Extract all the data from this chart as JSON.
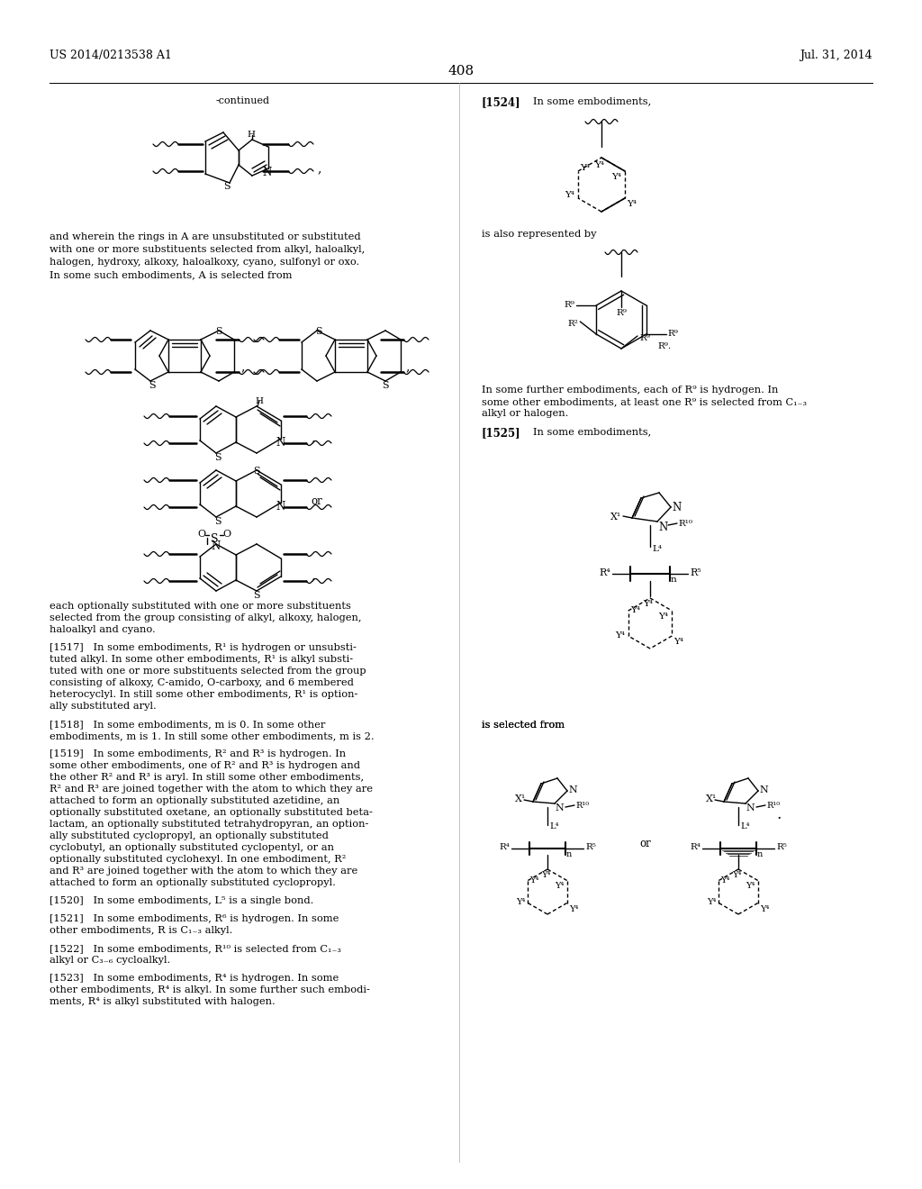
{
  "page_number": "408",
  "header_left": "US 2014/0213538 A1",
  "header_right": "Jul. 31, 2014",
  "background_color": "#ffffff",
  "text_color": "#000000",
  "figsize": [
    10.24,
    13.2
  ],
  "dpi": 100,
  "left_texts": [
    [
      55,
      258,
      "and wherein the rings in A are unsubstituted or substituted"
    ],
    [
      55,
      272,
      "with one or more substituents selected from alkyl, haloalkyl,"
    ],
    [
      55,
      286,
      "halogen, hydroxy, alkoxy, haloalkoxy, cyano, sulfonyl or oxo."
    ],
    [
      55,
      300,
      "In some such embodiments, A is selected from"
    ]
  ],
  "left_paras": [
    [
      55,
      668,
      "each optionally substituted with one or more substituents"
    ],
    [
      55,
      681,
      "selected from the group consisting of alkyl, alkoxy, halogen,"
    ],
    [
      55,
      694,
      "haloalkyl and cyano."
    ],
    [
      55,
      714,
      "[1517]   In some embodiments, R¹ is hydrogen or unsubsti-"
    ],
    [
      55,
      727,
      "tuted alkyl. In some other embodiments, R¹ is alkyl substi-"
    ],
    [
      55,
      740,
      "tuted with one or more substituents selected from the group"
    ],
    [
      55,
      753,
      "consisting of alkoxy, C-amido, O-carboxy, and 6 membered"
    ],
    [
      55,
      766,
      "heterocyclyl. In still some other embodiments, R¹ is option-"
    ],
    [
      55,
      779,
      "ally substituted aryl."
    ],
    [
      55,
      799,
      "[1518]   In some embodiments, m is 0. In some other"
    ],
    [
      55,
      812,
      "embodiments, m is 1. In still some other embodiments, m is 2."
    ],
    [
      55,
      832,
      "[1519]   In some embodiments, R² and R³ is hydrogen. In"
    ],
    [
      55,
      845,
      "some other embodiments, one of R² and R³ is hydrogen and"
    ],
    [
      55,
      858,
      "the other R² and R³ is aryl. In still some other embodiments,"
    ],
    [
      55,
      871,
      "R² and R³ are joined together with the atom to which they are"
    ],
    [
      55,
      884,
      "attached to form an optionally substituted azetidine, an"
    ],
    [
      55,
      897,
      "optionally substituted oxetane, an optionally substituted beta-"
    ],
    [
      55,
      910,
      "lactam, an optionally substituted tetrahydropyran, an option-"
    ],
    [
      55,
      923,
      "ally substituted cyclopropyl, an optionally substituted"
    ],
    [
      55,
      936,
      "cyclobutyl, an optionally substituted cyclopentyl, or an"
    ],
    [
      55,
      949,
      "optionally substituted cyclohexyl. In one embodiment, R²"
    ],
    [
      55,
      962,
      "and R³ are joined together with the atom to which they are"
    ],
    [
      55,
      975,
      "attached to form an optionally substituted cyclopropyl."
    ],
    [
      55,
      995,
      "[1520]   In some embodiments, L⁵ is a single bond."
    ],
    [
      55,
      1015,
      "[1521]   In some embodiments, R⁶ is hydrogen. In some"
    ],
    [
      55,
      1028,
      "other embodiments, R is C₁₋₃ alkyl."
    ],
    [
      55,
      1048,
      "[1522]   In some embodiments, R¹⁰ is selected from C₁₋₃"
    ],
    [
      55,
      1061,
      "alkyl or C₃₋₆ cycloalkyl."
    ],
    [
      55,
      1081,
      "[1523]   In some embodiments, R⁴ is hydrogen. In some"
    ],
    [
      55,
      1094,
      "other embodiments, R⁴ is alkyl. In some further such embodi-"
    ],
    [
      55,
      1107,
      "ments, R⁴ is alkyl substituted with halogen."
    ]
  ],
  "right_paras": [
    [
      535,
      428,
      "In some further embodiments, each of R⁹ is hydrogen. In"
    ],
    [
      535,
      441,
      "some other embodiments, at least one R⁹ is selected from C₁₋₃"
    ],
    [
      535,
      454,
      "alkyl or halogen."
    ],
    [
      535,
      800,
      "is selected from"
    ]
  ]
}
